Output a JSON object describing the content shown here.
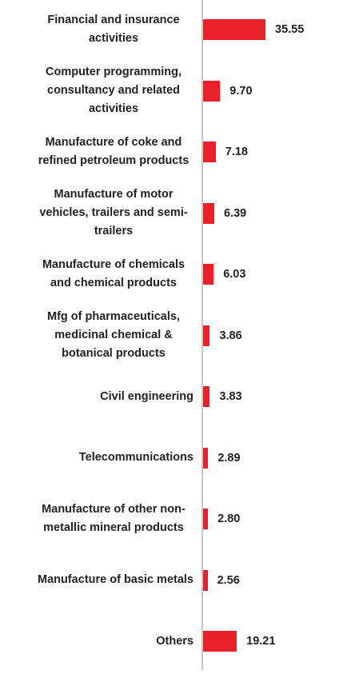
{
  "chart_data": {
    "type": "bar",
    "orientation": "horizontal",
    "categories": [
      "Financial and insurance activities",
      "Computer programming, consultancy and related activities",
      "Manufacture of coke and refined petroleum products",
      "Manufacture of motor vehicles, trailers and semi-trailers",
      "Manufacture of chemicals and chemical products",
      "Mfg of pharmaceuticals, medicinal chemical & botanical products",
      "Civil engineering",
      "Telecommunications",
      "Manufacture of other non-metallic mineral products",
      "Manufacture of basic metals",
      "Others"
    ],
    "values": [
      35.55,
      9.7,
      7.18,
      6.39,
      6.03,
      3.86,
      3.83,
      2.89,
      2.8,
      2.56,
      19.21
    ],
    "value_labels": [
      "35.55",
      "9.70",
      "7.18",
      "6.39",
      "6.03",
      "3.86",
      "3.83",
      "2.89",
      "2.80",
      "2.56",
      "19.21"
    ],
    "color": "#e8202a"
  }
}
